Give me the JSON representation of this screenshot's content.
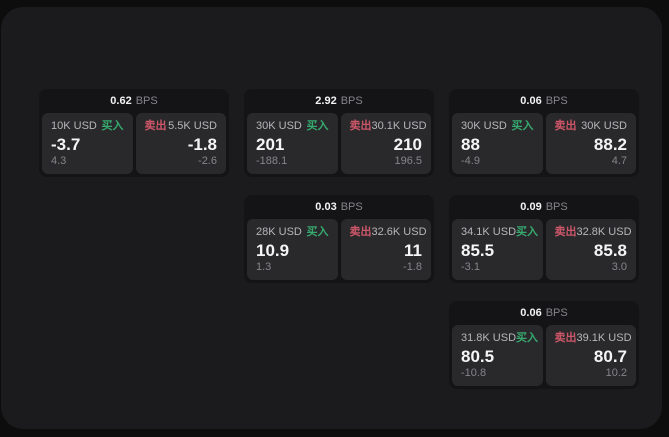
{
  "labels": {
    "unit": "BPS",
    "buy": "买入",
    "sell": "卖出"
  },
  "colors": {
    "green": "#36a96e",
    "red": "#cd5668"
  },
  "cards": [
    {
      "row": 0,
      "col": 0,
      "bps": "0.62",
      "buy": {
        "amount": "10K USD",
        "value": "-3.7",
        "delta": "4.3"
      },
      "sell": {
        "amount": "5.5K USD",
        "value": "-1.8",
        "delta": "-2.6"
      }
    },
    {
      "row": 0,
      "col": 1,
      "bps": "2.92",
      "buy": {
        "amount": "30K USD",
        "value": "201",
        "delta": "-188.1"
      },
      "sell": {
        "amount": "30.1K USD",
        "value": "210",
        "delta": "196.5"
      }
    },
    {
      "row": 0,
      "col": 2,
      "bps": "0.06",
      "buy": {
        "amount": "30K USD",
        "value": "88",
        "delta": "-4.9"
      },
      "sell": {
        "amount": "30K USD",
        "value": "88.2",
        "delta": "4.7"
      }
    },
    {
      "row": 1,
      "col": 1,
      "bps": "0.03",
      "buy": {
        "amount": "28K USD",
        "value": "10.9",
        "delta": "1.3"
      },
      "sell": {
        "amount": "32.6K USD",
        "value": "11",
        "delta": "-1.8"
      }
    },
    {
      "row": 1,
      "col": 2,
      "bps": "0.09",
      "buy": {
        "amount": "34.1K USD",
        "value": "85.5",
        "delta": "-3.1"
      },
      "sell": {
        "amount": "32.8K USD",
        "value": "85.8",
        "delta": "3.0"
      }
    },
    {
      "row": 2,
      "col": 2,
      "bps": "0.06",
      "buy": {
        "amount": "31.8K USD",
        "value": "80.5",
        "delta": "-10.8"
      },
      "sell": {
        "amount": "39.1K USD",
        "value": "80.7",
        "delta": "10.2"
      }
    }
  ]
}
